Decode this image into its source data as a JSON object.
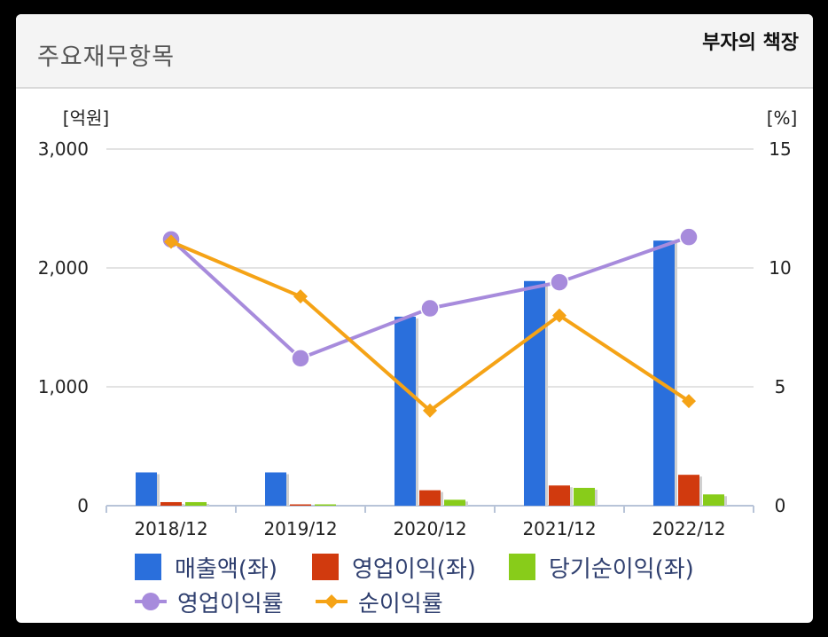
{
  "header": {
    "title": "주요재무항목",
    "brand": "부자의 책장"
  },
  "chart_data": {
    "type": "bar",
    "title": "주요재무항목",
    "categories": [
      "2018/12",
      "2019/12",
      "2020/12",
      "2021/12",
      "2022/12"
    ],
    "left_axis": {
      "unit": "[억원]",
      "ylim": [
        0,
        3000
      ],
      "ticks": [
        "3,000",
        "2,000",
        "1,000",
        "0"
      ]
    },
    "right_axis": {
      "unit": "[%]",
      "ylim": [
        0,
        15
      ],
      "ticks": [
        "15",
        "10",
        "5",
        "0"
      ]
    },
    "grid": true,
    "legend_position": "bottom",
    "bar_series": [
      {
        "name": "매출액(좌)",
        "color": "#2a6fdc",
        "values": [
          280,
          280,
          1590,
          1890,
          2230
        ]
      },
      {
        "name": "영업이익(좌)",
        "color": "#d13a0e",
        "values": [
          30,
          5,
          130,
          170,
          260
        ]
      },
      {
        "name": "당기순이익(좌)",
        "color": "#88cc1a",
        "values": [
          30,
          5,
          50,
          150,
          95
        ]
      }
    ],
    "line_series": [
      {
        "name": "영업이익률",
        "color": "#a78bdc",
        "marker": "circle",
        "axis": "right",
        "values": [
          11.2,
          6.2,
          8.3,
          9.4,
          11.3
        ]
      },
      {
        "name": "순이익률",
        "color": "#f5a316",
        "marker": "diamond",
        "axis": "right",
        "values": [
          11.1,
          8.8,
          4.0,
          8.0,
          4.4
        ]
      }
    ]
  }
}
